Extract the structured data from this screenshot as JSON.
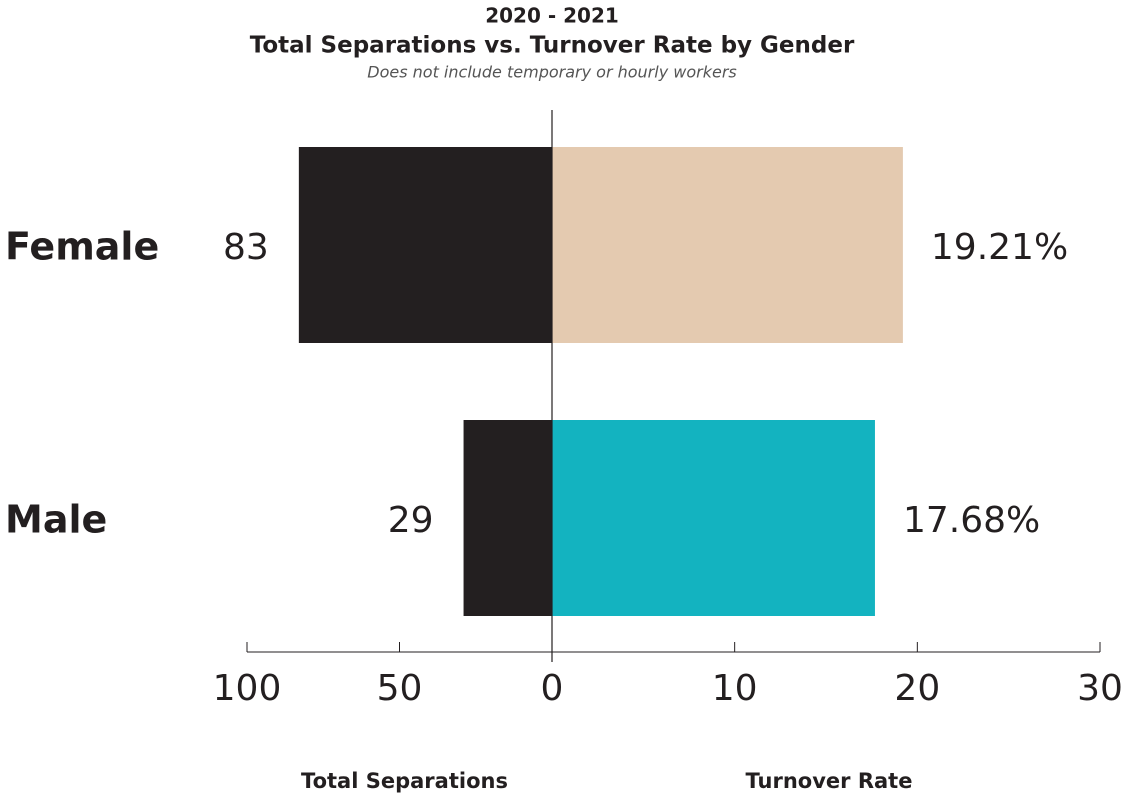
{
  "chart_data": {
    "type": "butterfly",
    "title": "2020 - 2021",
    "subtitle": "Total Separations vs. Turnover Rate by Gender",
    "note": "Does not include temporary or hourly workers",
    "categories": [
      "Female",
      "Male"
    ],
    "series": [
      {
        "name": "Total Separations",
        "side": "left",
        "colors": [
          "#231f20",
          "#231f20"
        ],
        "values": [
          83,
          29
        ],
        "xlim": [
          0,
          100
        ],
        "xticks": [
          0,
          50,
          100
        ]
      },
      {
        "name": "Turnover Rate",
        "side": "right",
        "colors": [
          "#e4cab0",
          "#13b3c0"
        ],
        "values": [
          19.21,
          17.68
        ],
        "value_labels": [
          "19.21%",
          "17.68%"
        ],
        "xlim": [
          0,
          30
        ],
        "xticks": [
          10,
          20,
          30
        ]
      }
    ]
  }
}
